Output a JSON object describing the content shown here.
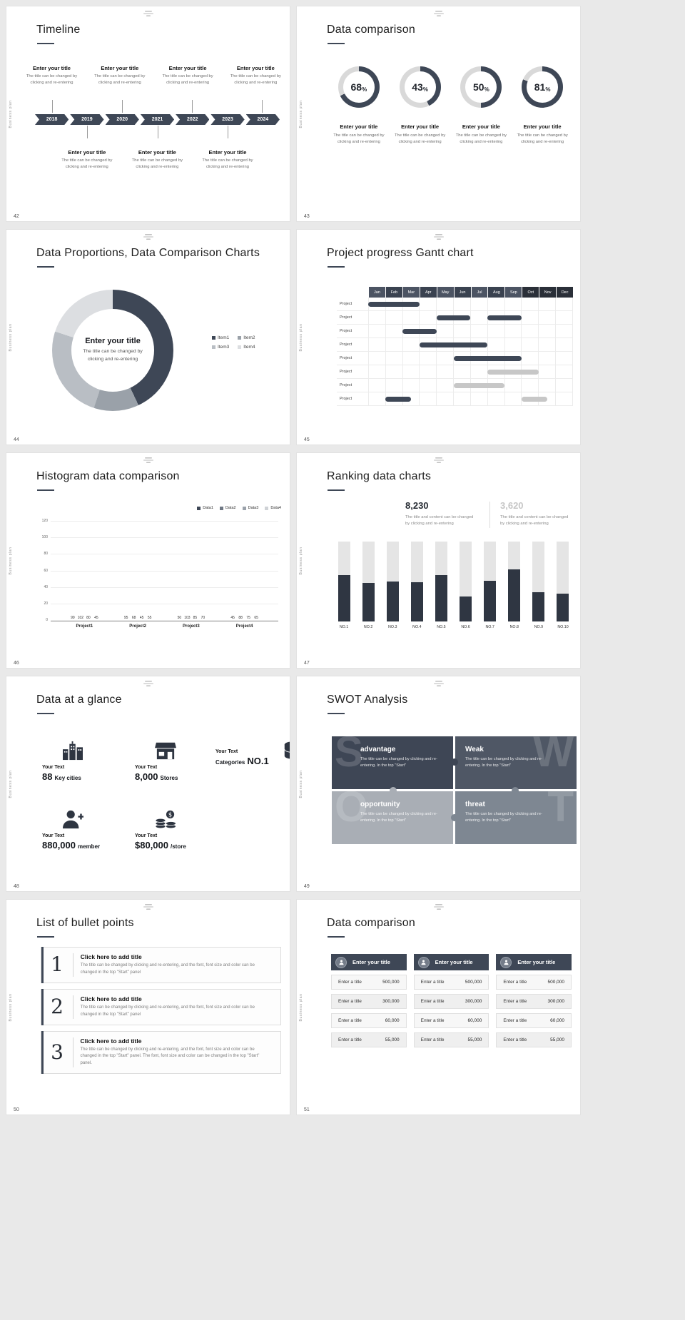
{
  "theme": {
    "accent": "#3e4756",
    "accent_dark": "#2f3642",
    "light_gray": "#d9d9d9",
    "page_bg": "#e9e9e9"
  },
  "common": {
    "brand_vertical": "Business plan",
    "entry_title": "Enter your title",
    "entry_caption": "The title can be changed by clicking and re-entering"
  },
  "s42": {
    "number": "42",
    "title": "Timeline",
    "years": [
      "2018",
      "2019",
      "2020",
      "2021",
      "2022",
      "2023",
      "2024"
    ]
  },
  "s43": {
    "number": "43",
    "title": "Data comparison",
    "percent_sign": "%",
    "rings": [
      {
        "value": 68
      },
      {
        "value": 43
      },
      {
        "value": 50
      },
      {
        "value": 81
      }
    ]
  },
  "s44": {
    "number": "44",
    "title": "Data Proportions, Data Comparison Charts",
    "center_title": "Enter your title",
    "center_caption": "The title can be changed by clicking and re-entering",
    "segments": [
      {
        "label": "Item1",
        "value": 43,
        "color": "#3e4756"
      },
      {
        "label": "Item2",
        "value": 12,
        "color": "#9aa1a9"
      },
      {
        "label": "Item3",
        "value": 25,
        "color": "#b9bec4"
      },
      {
        "label": "Item4",
        "value": 20,
        "color": "#dcdee1"
      }
    ]
  },
  "s45": {
    "number": "45",
    "title": "Project progress Gantt chart",
    "months": [
      "Jan",
      "Feb",
      "Mar",
      "Apr",
      "May",
      "Jun",
      "Jul",
      "Aug",
      "Sep",
      "Oct",
      "Nov",
      "Dec"
    ],
    "row_label": "Project",
    "rows": [
      {
        "bars": [
          {
            "start": 1,
            "span": 3,
            "type": "dark"
          }
        ]
      },
      {
        "bars": [
          {
            "start": 5,
            "span": 2,
            "type": "dark"
          },
          {
            "start": 8,
            "span": 2,
            "type": "dark"
          }
        ]
      },
      {
        "bars": [
          {
            "start": 3,
            "span": 2,
            "type": "dark"
          }
        ]
      },
      {
        "bars": [
          {
            "start": 4,
            "span": 4,
            "type": "dark"
          }
        ]
      },
      {
        "bars": [
          {
            "start": 6,
            "span": 4,
            "type": "dark"
          }
        ]
      },
      {
        "bars": [
          {
            "start": 8,
            "span": 3,
            "type": "light"
          }
        ]
      },
      {
        "bars": [
          {
            "start": 6,
            "span": 3,
            "type": "light"
          }
        ]
      },
      {
        "bars": [
          {
            "start": 2,
            "span": 1.5,
            "type": "dark"
          },
          {
            "start": 10,
            "span": 1.5,
            "type": "light"
          }
        ]
      }
    ]
  },
  "s46": {
    "number": "46",
    "title": "Histogram data comparison",
    "legend": [
      "Data1",
      "Data2",
      "Data3",
      "Data4"
    ],
    "colors": [
      "#3e4756",
      "#6f7884",
      "#9ba2ab",
      "#cfd2d6"
    ],
    "ymax": 120,
    "yticks": [
      0,
      20,
      40,
      60,
      80,
      100,
      120
    ],
    "groups": [
      {
        "label": "Project1",
        "values": [
          99,
          102,
          80,
          45
        ]
      },
      {
        "label": "Project2",
        "values": [
          95,
          68,
          45,
          55
        ]
      },
      {
        "label": "Project3",
        "values": [
          50,
          103,
          85,
          70
        ]
      },
      {
        "label": "Project4",
        "values": [
          45,
          88,
          75,
          65
        ]
      }
    ]
  },
  "s47": {
    "number": "47",
    "title": "Ranking data charts",
    "stat_primary": {
      "value": "8,230",
      "caption": "The title and content can be changed by clicking and re-entering"
    },
    "stat_secondary": {
      "value": "3,620",
      "caption": "The title and content can be changed by clicking and re-entering"
    },
    "track_max": 100,
    "bars": [
      {
        "label": "NO.1",
        "value": 58
      },
      {
        "label": "NO.2",
        "value": 48
      },
      {
        "label": "NO.3",
        "value": 50
      },
      {
        "label": "NO.4",
        "value": 49
      },
      {
        "label": "NO.5",
        "value": 58
      },
      {
        "label": "NO.6",
        "value": 31
      },
      {
        "label": "NO.7",
        "value": 51
      },
      {
        "label": "NO.8",
        "value": 65
      },
      {
        "label": "NO.9",
        "value": 37
      },
      {
        "label": "NO.10",
        "value": 35
      }
    ]
  },
  "s48": {
    "number": "48",
    "title": "Data at a glance",
    "label": "Your Text",
    "stats": [
      {
        "icon": "buildings-icon",
        "big": "88",
        "small": "Key cities"
      },
      {
        "icon": "store-icon",
        "big": "8,000",
        "small": "Stores"
      },
      {
        "icon": "database-icon",
        "small": "Categories",
        "big": "NO.1"
      },
      {
        "icon": "member-icon",
        "big": "880,000",
        "small": "member"
      },
      {
        "icon": "coins-icon",
        "big": "$80,000",
        "small": "/store"
      }
    ]
  },
  "s49": {
    "number": "49",
    "title": "SWOT Analysis",
    "caption": "The title can be changed by clicking and re-entering. In the top \"Start\"",
    "cells": [
      {
        "letter": "S",
        "word": "advantage",
        "color": "#3e4655"
      },
      {
        "letter": "W",
        "word": "Weak",
        "color": "#4f5765"
      },
      {
        "letter": "O",
        "word": "opportunity",
        "color": "#a9aeb5"
      },
      {
        "letter": "T",
        "word": "threat",
        "color": "#7e8792"
      }
    ]
  },
  "s50": {
    "number": "50",
    "title": "List of bullet points",
    "items": [
      {
        "num": "1",
        "heading": "Click here to add title",
        "body": "The title can be changed by clicking and re-entering, and the font, font size and color can be changed in the top \"Start\" panel"
      },
      {
        "num": "2",
        "heading": "Click here to add title",
        "body": "The title can be changed by clicking and re-entering, and the font, font size and color can be changed in the top \"Start\" panel"
      },
      {
        "num": "3",
        "heading": "Click here to add title",
        "body": "The title can be changed by clicking and re-entering, and the font, font size and color can be changed in the top \"Start\" panel. The font, font size and color can be changed in the top \"Start\" panel."
      }
    ]
  },
  "s51": {
    "number": "51",
    "title": "Data comparison",
    "tables": [
      {
        "header": "Enter your title",
        "rows": [
          {
            "label": "Enter a title",
            "value": "500,000"
          },
          {
            "label": "Enter a title",
            "value": "300,000"
          },
          {
            "label": "Enter a title",
            "value": "60,000"
          },
          {
            "label": "Enter a title",
            "value": "55,000"
          }
        ]
      },
      {
        "header": "Enter your title",
        "rows": [
          {
            "label": "Enter a title",
            "value": "500,000"
          },
          {
            "label": "Enter a title",
            "value": "300,000"
          },
          {
            "label": "Enter a title",
            "value": "60,000"
          },
          {
            "label": "Enter a title",
            "value": "55,000"
          }
        ]
      },
      {
        "header": "Enter your title",
        "rows": [
          {
            "label": "Enter a title",
            "value": "500,000"
          },
          {
            "label": "Enter a title",
            "value": "300,000"
          },
          {
            "label": "Enter a title",
            "value": "60,000"
          },
          {
            "label": "Enter a title",
            "value": "55,000"
          }
        ]
      }
    ]
  }
}
